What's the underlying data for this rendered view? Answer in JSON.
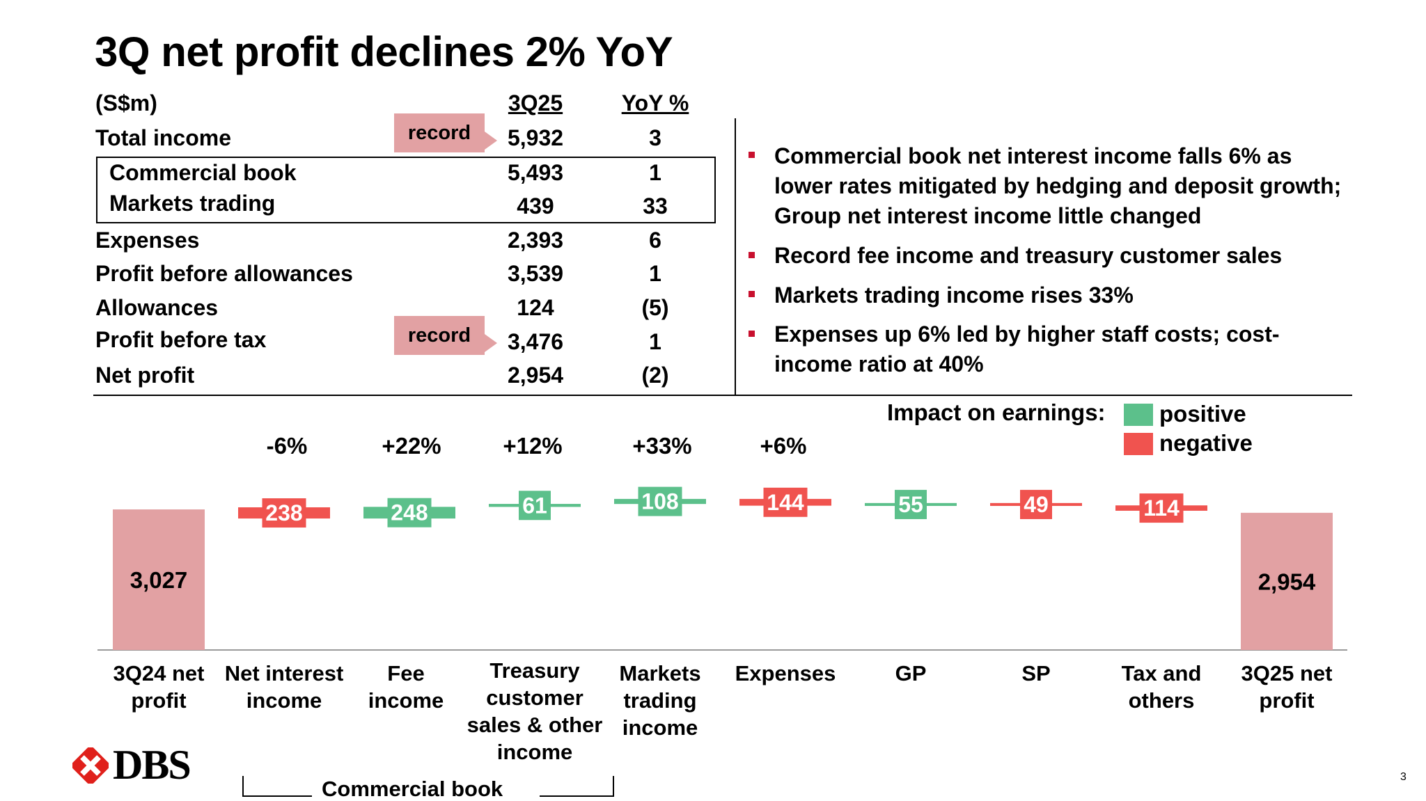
{
  "title": "3Q net profit declines 2% YoY",
  "table": {
    "unit_label": "(S$m)",
    "col_3q25": "3Q25",
    "col_yoy": "YoY %",
    "record_label": "record",
    "rows": [
      {
        "label": "Total income",
        "value": "5,932",
        "yoy": "3"
      },
      {
        "label": "Commercial book",
        "value": "5,493",
        "yoy": "1"
      },
      {
        "label": "Markets trading",
        "value": "439",
        "yoy": "33"
      },
      {
        "label": "Expenses",
        "value": "2,393",
        "yoy": "6"
      },
      {
        "label": "Profit before allowances",
        "value": "3,539",
        "yoy": "1"
      },
      {
        "label": "Allowances",
        "value": "124",
        "yoy": "(5)"
      },
      {
        "label": "Profit before tax",
        "value": "3,476",
        "yoy": "1"
      },
      {
        "label": "Net profit",
        "value": "2,954",
        "yoy": "(2)"
      }
    ]
  },
  "bullets": [
    "Commercial book net interest income falls 6% as lower rates mitigated by hedging and deposit growth; Group net interest income little changed",
    "Record fee income and treasury customer sales",
    "Markets trading income rises 33%",
    "Expenses up 6% led by higher staff costs; cost-income ratio at 40%"
  ],
  "legend": {
    "title": "Impact on earnings:",
    "positive": "positive",
    "negative": "negative",
    "positive_color": "#5cc08b",
    "negative_color": "#f0534f"
  },
  "bracket_label": "Commercial book",
  "logo_text": "DBS",
  "page_number": "3",
  "colors": {
    "total_bar": "#e2a1a3",
    "positive": "#5cc08b",
    "negative": "#f0534f",
    "accent_bullet": "#c8102e"
  },
  "chart_data": {
    "type": "waterfall",
    "title": "",
    "categories": [
      "3Q24 net profit",
      "Net interest income",
      "Fee income",
      "Treasury customer sales & other income",
      "Markets trading income",
      "Expenses",
      "GP",
      "SP",
      "Tax and others",
      "3Q25 net profit"
    ],
    "values": [
      3027,
      -238,
      248,
      61,
      108,
      -144,
      55,
      -49,
      -114,
      2954
    ],
    "labels": [
      "3,027",
      "238",
      "248",
      "61",
      "108",
      "144",
      "55",
      "49",
      "114",
      "2,954"
    ],
    "kinds": [
      "total",
      "negative",
      "positive",
      "positive",
      "positive",
      "negative",
      "positive",
      "negative",
      "negative",
      "total"
    ],
    "yoy_pct": [
      "",
      "-6%",
      "+22%",
      "+12%",
      "+33%",
      "+6%",
      "",
      "",
      "",
      ""
    ]
  }
}
